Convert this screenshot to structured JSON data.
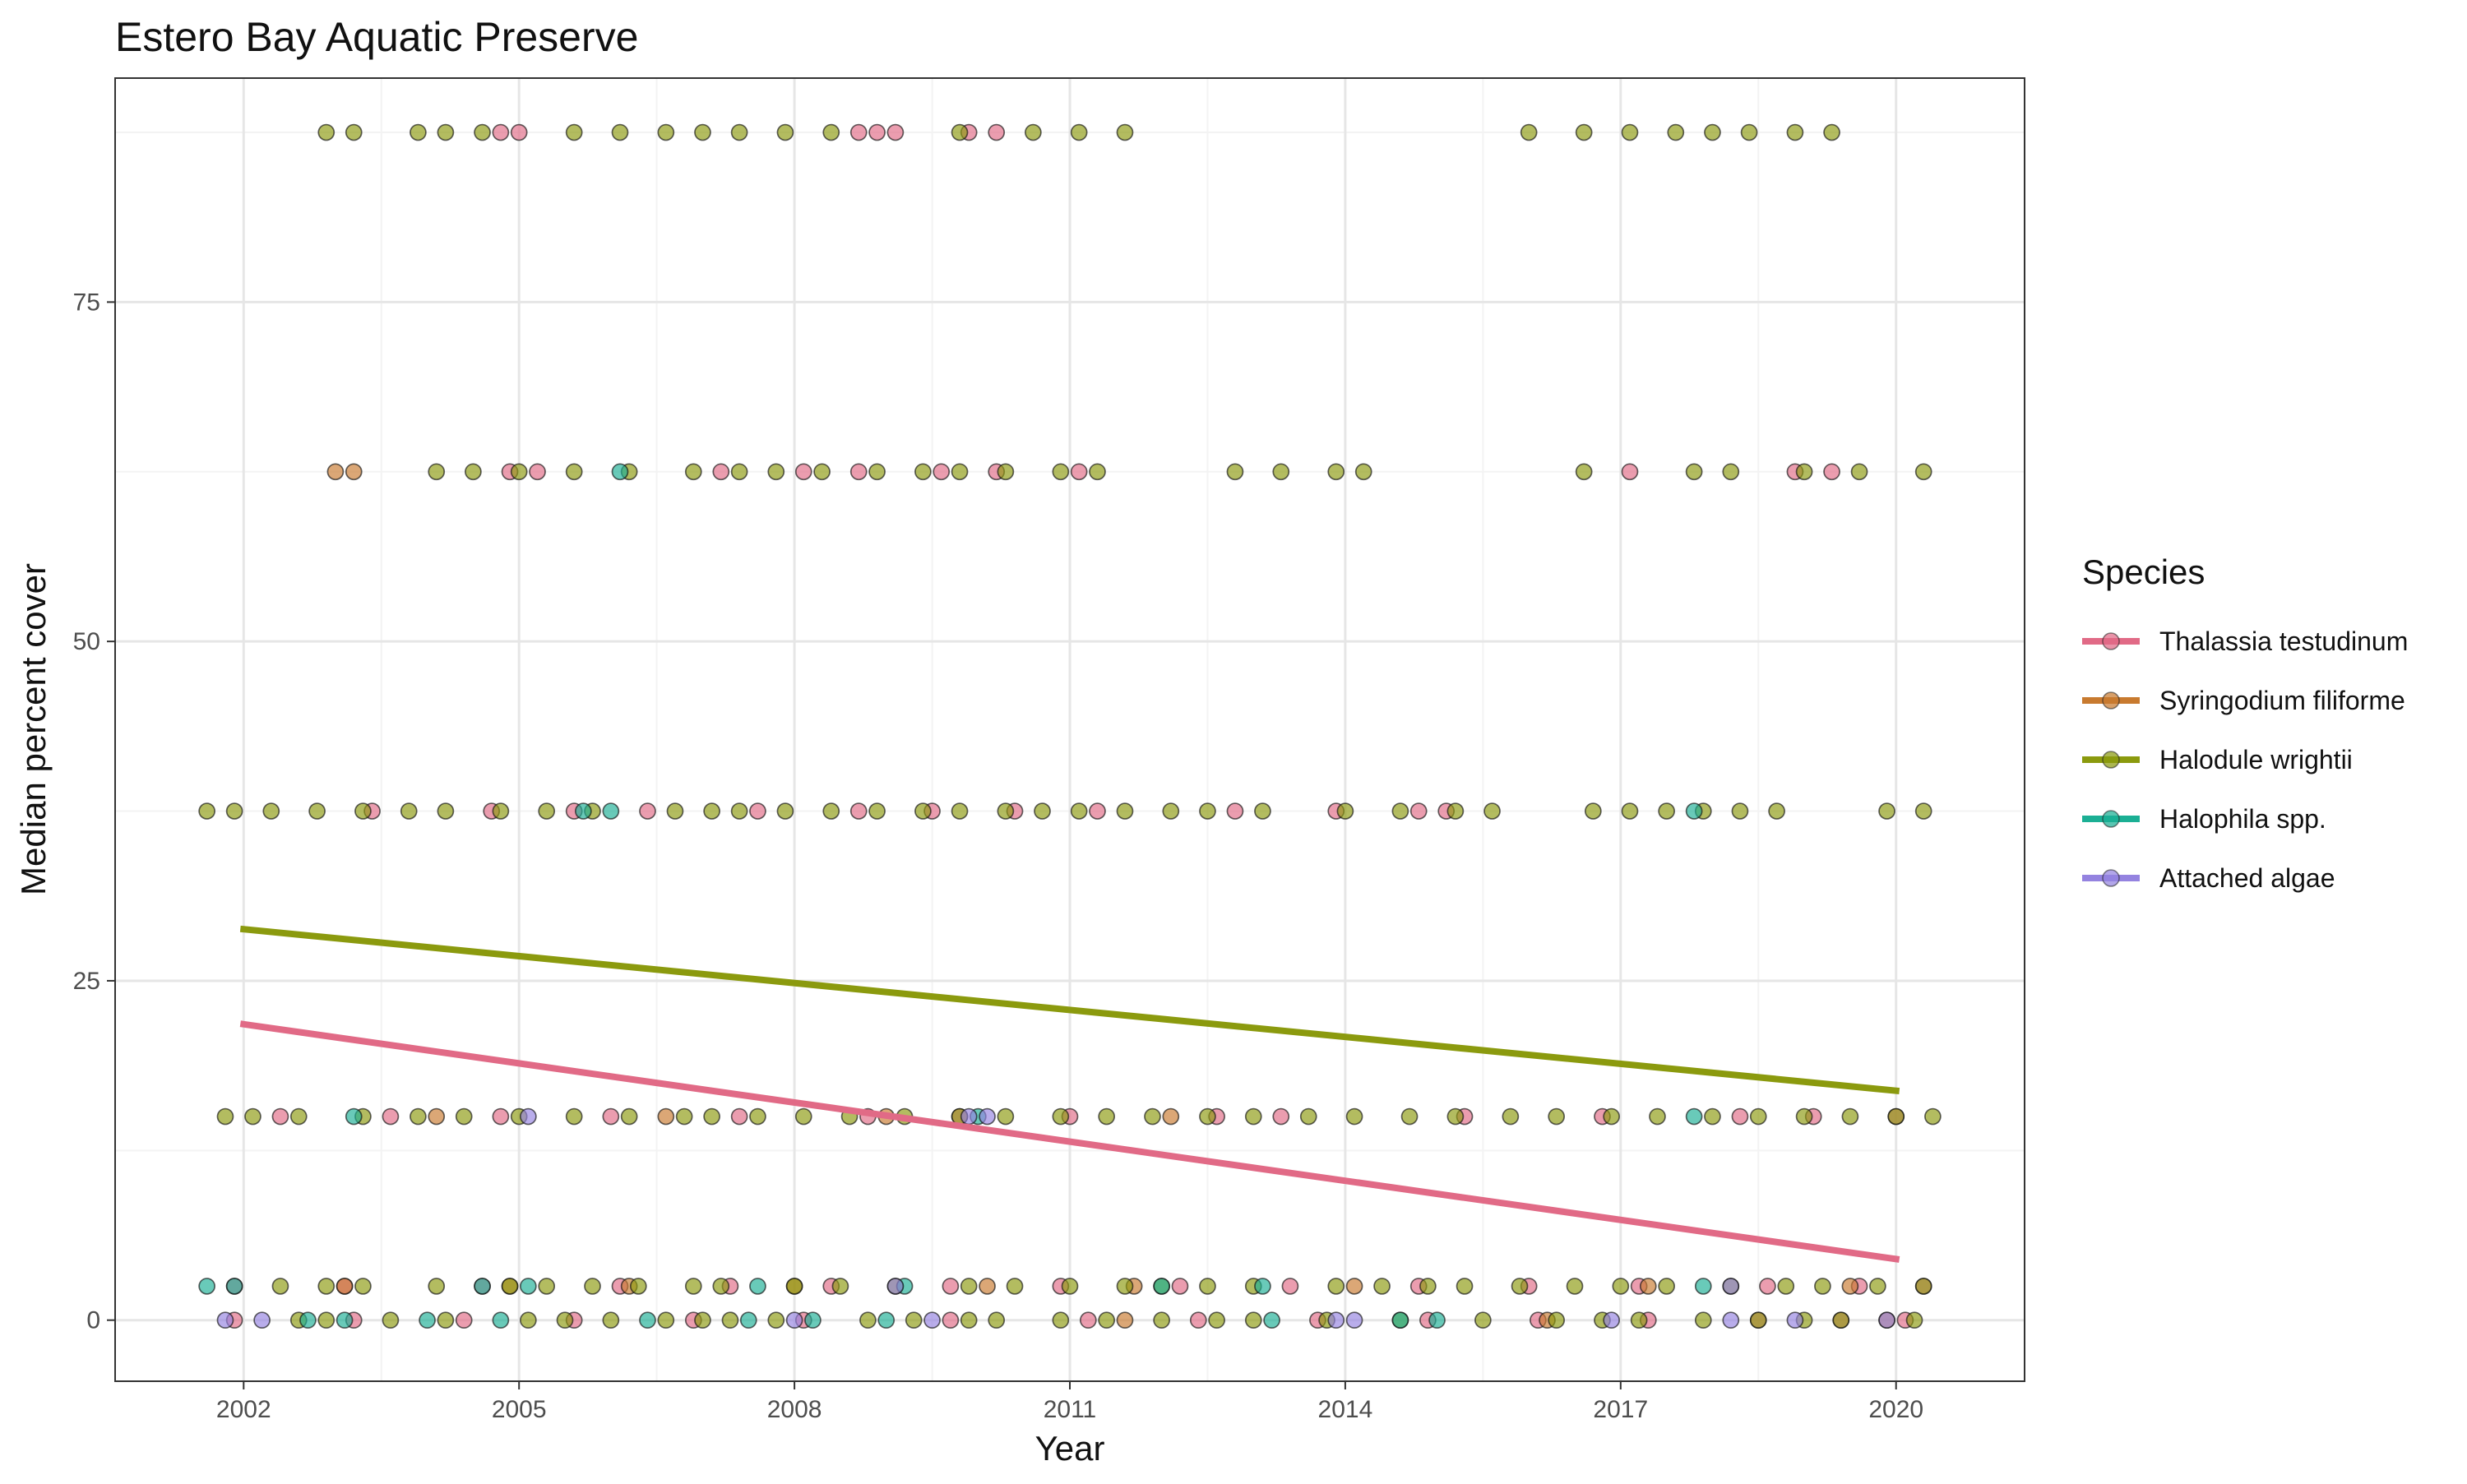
{
  "chart_data": {
    "type": "scatter",
    "title": "Estero Bay Aquatic Preserve",
    "xlabel": "Year",
    "ylabel": "Median percent cover",
    "xlim": [
      2000.6,
      2021.4
    ],
    "ylim": [
      -4.5,
      91.5
    ],
    "x_ticks": [
      2002,
      2005,
      2008,
      2011,
      2014,
      2017,
      2020
    ],
    "y_ticks": [
      0,
      25,
      50,
      75
    ],
    "grid": true,
    "legend": {
      "title": "Species",
      "position": "right"
    },
    "series": [
      {
        "name": "Thalassia testudinum",
        "color": "#E16A86",
        "trend": {
          "x": [
            2002,
            2020
          ],
          "y": [
            21.8,
            4.5
          ]
        },
        "points": {
          "0": [
            2001.9,
            2003.2,
            2004.4,
            2005.6,
            2006.9,
            2008.1,
            2009.7,
            2011.2,
            2012.4,
            2013.7,
            2014.9,
            2016.1,
            2017.3,
            2018.5,
            2019.4,
            2020.1
          ],
          "2.5": [
            2001.9,
            2003.1,
            2004.6,
            2006.1,
            2007.3,
            2008.4,
            2009.7,
            2010.9,
            2012.2,
            2013.4,
            2014.8,
            2016.0,
            2017.2,
            2018.6,
            2019.6,
            2020.3
          ],
          "15": [
            2002.4,
            2003.6,
            2004.8,
            2006.0,
            2007.4,
            2008.8,
            2009.8,
            2011.0,
            2012.6,
            2013.3,
            2015.3,
            2016.8,
            2018.3,
            2019.1,
            2020.0
          ],
          "37.5": [
            2003.4,
            2004.7,
            2005.6,
            2006.4,
            2007.6,
            2008.7,
            2009.5,
            2010.4,
            2011.3,
            2012.8,
            2013.9,
            2014.8,
            2015.1
          ],
          "62.5": [
            2004.9,
            2005.2,
            2007.2,
            2008.1,
            2008.7,
            2009.6,
            2010.2,
            2011.1,
            2017.1,
            2018.9,
            2019.3
          ],
          "87.5": [
            2004.8,
            2005.0,
            2008.7,
            2008.9,
            2009.1,
            2009.9,
            2010.2
          ]
        }
      },
      {
        "name": "Syringodium filiforme",
        "color": "#C87A2F",
        "trend": null,
        "points": {
          "2.5": [
            2003.1,
            2004.9,
            2006.2,
            2008.0,
            2010.1,
            2011.7,
            2014.1,
            2017.3,
            2019.5
          ],
          "15": [
            2004.1,
            2006.6,
            2009.0,
            2012.1
          ],
          "62.5": [
            2003.0,
            2003.2
          ],
          "0": [
            2011.6,
            2016.2,
            2019.9
          ]
        }
      },
      {
        "name": "Halodule wrightii",
        "color": "#8B9A0E",
        "trend": {
          "x": [
            2002,
            2020
          ],
          "y": [
            28.8,
            16.9
          ]
        },
        "points": {
          "0": [
            2002.6,
            2002.9,
            2003.6,
            2004.2,
            2005.1,
            2005.5,
            2006.0,
            2006.6,
            2007.0,
            2007.3,
            2007.8,
            2008.8,
            2009.3,
            2009.9,
            2010.2,
            2010.9,
            2011.4,
            2012.0,
            2012.6,
            2013.0,
            2013.8,
            2014.6,
            2015.5,
            2016.3,
            2016.8,
            2017.2,
            2017.9,
            2018.5,
            2019.0,
            2019.4,
            2020.2
          ],
          "2.5": [
            2002.4,
            2002.9,
            2003.3,
            2004.1,
            2004.9,
            2005.3,
            2005.8,
            2006.3,
            2006.9,
            2007.2,
            2008.0,
            2008.5,
            2009.1,
            2009.9,
            2010.4,
            2011.0,
            2011.6,
            2012.0,
            2012.5,
            2013.0,
            2013.9,
            2014.4,
            2014.9,
            2015.3,
            2015.9,
            2016.5,
            2017.0,
            2017.5,
            2018.2,
            2018.8,
            2019.2,
            2019.8,
            2020.3
          ],
          "15": [
            2001.8,
            2002.1,
            2002.6,
            2003.3,
            2003.9,
            2004.4,
            2005.0,
            2005.6,
            2006.2,
            2006.8,
            2007.1,
            2007.6,
            2008.1,
            2008.6,
            2009.2,
            2009.8,
            2010.3,
            2010.9,
            2011.4,
            2011.9,
            2012.5,
            2013.0,
            2013.6,
            2014.1,
            2014.7,
            2015.2,
            2015.8,
            2016.3,
            2016.9,
            2017.4,
            2018.0,
            2018.5,
            2019.0,
            2019.5,
            2020.0,
            2020.4
          ],
          "37.5": [
            2001.6,
            2001.9,
            2002.3,
            2002.8,
            2003.3,
            2003.8,
            2004.2,
            2004.8,
            2005.3,
            2005.8,
            2006.7,
            2007.1,
            2007.4,
            2007.9,
            2008.4,
            2008.9,
            2009.4,
            2009.8,
            2010.3,
            2010.7,
            2011.1,
            2011.6,
            2012.1,
            2012.5,
            2013.1,
            2014.0,
            2014.6,
            2015.2,
            2015.6,
            2016.7,
            2017.1,
            2017.5,
            2017.9,
            2018.3,
            2018.7,
            2019.9,
            2020.3
          ],
          "62.5": [
            2004.1,
            2004.5,
            2005.0,
            2005.6,
            2006.2,
            2006.9,
            2007.4,
            2007.8,
            2008.3,
            2008.9,
            2009.4,
            2009.8,
            2010.3,
            2010.9,
            2011.3,
            2012.8,
            2013.3,
            2013.9,
            2014.2,
            2016.6,
            2017.8,
            2018.2,
            2019.0,
            2019.6,
            2020.3
          ],
          "87.5": [
            2002.9,
            2003.2,
            2003.9,
            2004.2,
            2004.6,
            2005.6,
            2006.1,
            2006.6,
            2007.0,
            2007.4,
            2007.9,
            2008.4,
            2009.8,
            2010.6,
            2011.1,
            2011.6,
            2016.0,
            2016.6,
            2017.1,
            2017.6,
            2018.0,
            2018.4,
            2018.9,
            2019.3
          ]
        }
      },
      {
        "name": "Halophila spp.",
        "color": "#1BAF94",
        "trend": null,
        "points": {
          "0": [
            2002.7,
            2003.1,
            2004.0,
            2004.8,
            2006.4,
            2007.5,
            2008.2,
            2009.0,
            2013.2,
            2014.6,
            2015.0
          ],
          "2.5": [
            2001.6,
            2001.9,
            2004.6,
            2005.1,
            2007.6,
            2009.2,
            2012.0,
            2013.1,
            2017.9
          ],
          "15": [
            2003.2,
            2010.0,
            2017.8
          ],
          "37.5": [
            2005.7,
            2006.0,
            2017.8
          ],
          "62.5": [
            2006.1
          ]
        }
      },
      {
        "name": "Attached algae",
        "color": "#9483E0",
        "trend": null,
        "points": {
          "0": [
            2001.8,
            2002.2,
            2008.0,
            2009.5,
            2013.9,
            2014.1,
            2016.9,
            2018.2,
            2018.9,
            2019.9
          ],
          "2.5": [
            2009.1,
            2018.2
          ],
          "15": [
            2005.1,
            2009.9,
            2010.1
          ]
        }
      }
    ]
  }
}
